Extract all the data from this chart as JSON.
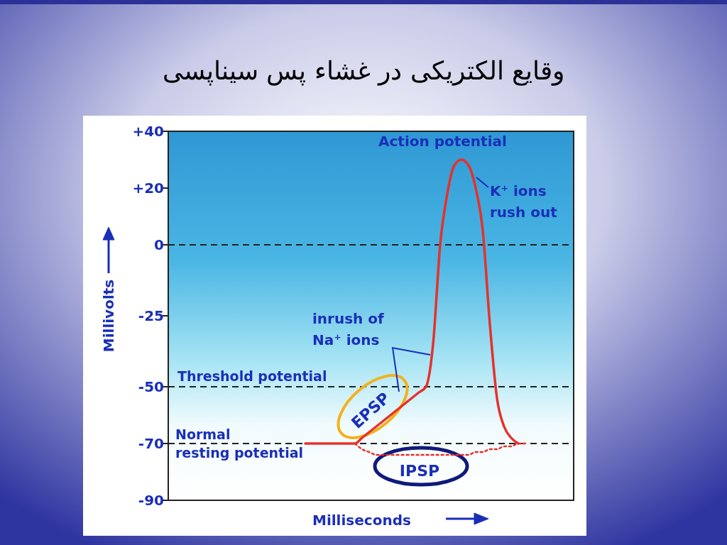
{
  "chart_data": {
    "type": "line",
    "title": "وقایع الکتریکی در غشاء پس سیناپسی",
    "xlabel": "Milliseconds",
    "ylabel": "Millivolts",
    "categories": [
      null,
      null,
      null,
      null,
      null,
      null,
      null,
      null,
      null,
      null,
      null,
      null,
      null,
      null,
      null,
      null,
      null,
      null,
      null,
      null,
      null,
      null,
      null,
      null,
      null,
      null,
      null,
      null,
      null,
      null,
      null,
      null,
      null,
      null,
      null,
      null,
      null,
      null,
      null,
      null,
      null,
      null,
      null,
      null,
      null,
      null,
      null,
      null,
      null,
      null,
      null,
      null,
      null,
      null,
      null,
      null,
      null
    ],
    "ylim": [
      -90,
      40
    ],
    "yticks": [
      {
        "value": 40,
        "label": "+40"
      },
      {
        "value": 20,
        "label": "+20"
      },
      0,
      -25,
      -50,
      -70,
      -90
    ],
    "series": [
      {
        "color": "#e8302a",
        "line_style": "solid",
        "values": [
          null,
          null,
          null,
          null,
          null,
          null,
          null,
          null,
          null,
          null,
          null,
          null,
          null,
          null,
          null,
          null,
          null,
          null,
          null,
          -70,
          -70,
          -70,
          -70,
          -70,
          -70,
          -70,
          -70,
          -68,
          -66,
          -64,
          -62,
          -60,
          -58,
          -56,
          -54,
          -52,
          -50,
          -35,
          0,
          18,
          28,
          30,
          28,
          20,
          5,
          -28,
          -54,
          -64,
          -68,
          -70,
          null,
          null,
          null,
          null,
          null,
          null,
          null
        ]
      },
      {
        "color": "#e8302a",
        "line_style": "dotted",
        "values": [
          null,
          null,
          null,
          null,
          null,
          null,
          null,
          null,
          null,
          null,
          null,
          null,
          null,
          null,
          null,
          null,
          null,
          null,
          null,
          null,
          null,
          null,
          null,
          null,
          null,
          null,
          -70,
          -72,
          -73,
          -74,
          -74,
          -74,
          -74,
          -74,
          -74,
          -74,
          -74,
          -74,
          -74,
          -74,
          -74,
          -74,
          -74,
          -73,
          -73,
          -72,
          -72,
          -71,
          -71,
          -70,
          -70,
          null,
          null,
          null,
          null,
          null,
          null
        ]
      }
    ],
    "ref_lines": [
      {
        "axis": "y",
        "value": 0,
        "color": "#222222",
        "line_style": "dashed"
      },
      {
        "axis": "y",
        "value": -50,
        "label": "Threshold potential",
        "color": "#222222",
        "line_style": "dashed"
      },
      {
        "axis": "y",
        "value": -70,
        "label": "Normal resting potential",
        "color": "#222222",
        "line_style": "dashed"
      }
    ],
    "annotations": [
      "Action potential",
      "K⁺ ions rush out",
      "inrush of Na⁺ ions",
      "EPSP",
      "IPSP"
    ]
  }
}
